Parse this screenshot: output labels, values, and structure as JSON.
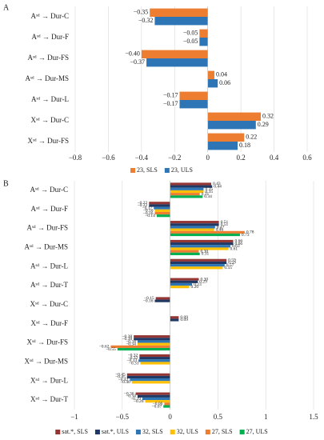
{
  "chart_data": [
    {
      "type": "hbar",
      "panel_label": "A",
      "categories": [
        "Aˢᵈ → Dur-C",
        "Aˢᵈ → Dur-F",
        "Aˢᵈ → Dur-FS",
        "Aˢᵈ → Dur-MS",
        "Aˢᵈ → Dur-L",
        "Xˢᵈ → Dur-C",
        "Xˢᵈ → Dur-FS"
      ],
      "series": [
        {
          "name": "23, SLS",
          "color": "#ed7d31",
          "values": [
            -0.35,
            -0.05,
            -0.4,
            0.04,
            -0.17,
            0.32,
            0.22
          ],
          "value_labels": [
            "−0.35",
            "−0.05",
            "−0.40",
            "0.04",
            "−0.17",
            "0.32",
            "0.22"
          ]
        },
        {
          "name": "23, ULS",
          "color": "#2e75b6",
          "values": [
            -0.32,
            -0.05,
            -0.37,
            0.06,
            -0.17,
            0.29,
            0.18
          ],
          "value_labels": [
            "−0.32",
            "−0.05",
            "−0.37",
            "0.06",
            "−0.17",
            "0.29",
            "0.18"
          ]
        }
      ],
      "xlim": [
        -0.8,
        0.6
      ],
      "xticks": [
        {
          "value": -0.8,
          "label": "−0.8"
        },
        {
          "value": -0.6,
          "label": "−0.6"
        },
        {
          "value": -0.4,
          "label": "−0.4"
        },
        {
          "value": -0.2,
          "label": "−0.2"
        },
        0,
        0.2,
        0.4,
        0.6
      ],
      "grid": true,
      "legend": "bottom"
    },
    {
      "type": "hbar",
      "panel_label": "B",
      "categories": [
        "Aˢᵈ → Dur-C",
        "Aˢᵈ → Dur-F",
        "Aˢᵈ → Dur-FS",
        "Aˢᵈ → Dur-MS",
        "Aˢᵈ → Dur-L",
        "Aˢᵈ → Dur-T",
        "Xˢᵈ → Dur-C",
        "Xˢᵈ → Dur-F",
        "Xˢᵈ → Dur-FS",
        "Xˢᵈ → Dur-MS",
        "Xˢᵈ → Dur-L",
        "Xˢᵈ → Dur-T"
      ],
      "series": [
        {
          "name": "sat.*, SLS",
          "color": "#943634",
          "values": [
            0.43,
            -0.22,
            0.51,
            0.66,
            0.59,
            0.3,
            -0.15,
            0.09,
            -0.38,
            -0.32,
            -0.45,
            -0.36
          ],
          "value_labels": [
            "0.43",
            "−0.22",
            "0.51",
            "0.66",
            "0.59",
            "0.30",
            "−0.15",
            "0.09",
            "−0.38",
            "−0.32",
            "−0.45",
            "−0.36"
          ]
        },
        {
          "name": "sat.*, ULS",
          "color": "#1f3864",
          "values": [
            0.44,
            -0.22,
            0.51,
            0.66,
            0.59,
            0.29,
            -0.16,
            0.09,
            -0.38,
            -0.32,
            -0.45,
            -0.34
          ],
          "value_labels": [
            "0.44",
            "−0.22",
            "0.51",
            "0.66",
            "0.59",
            "0.29",
            "−0.16",
            "0.09",
            "−0.38",
            "−0.32",
            "−0.45",
            "−0.34"
          ]
        },
        {
          "name": "32, SLS",
          "color": "#2e75b6",
          "values": [
            0.35,
            -0.17,
            0.47,
            0.63,
            0.57,
            0.23,
            null,
            null,
            -0.34,
            -0.33,
            -0.42,
            -0.29
          ],
          "value_labels": [
            "0.35",
            "−0.17",
            "0.47",
            "0.63",
            "0.57",
            "0.23",
            null,
            null,
            "−0.34",
            "−0.33",
            "−0.42",
            "−0.29"
          ]
        },
        {
          "name": "32, ULS",
          "color": "#ffc000",
          "values": [
            0.35,
            -0.16,
            0.46,
            0.61,
            0.55,
            0.2,
            null,
            null,
            -0.34,
            -0.31,
            -0.4,
            -0.26
          ],
          "value_labels": [
            "0.35",
            "−0.16",
            "0.46",
            "0.61",
            "0.55",
            "0.20",
            null,
            null,
            "−0.34",
            "−0.31",
            "−0.40",
            "−0.26"
          ]
        },
        {
          "name": "27, SLS",
          "color": "#ed7d31",
          "values": [
            0.31,
            -0.16,
            0.78,
            0.3,
            null,
            null,
            null,
            null,
            -0.62,
            null,
            null,
            -0.06
          ],
          "value_labels": [
            "0.31",
            "−0.16",
            "0.78",
            "0.30",
            null,
            null,
            null,
            null,
            "−0.62",
            null,
            null,
            "−0.06"
          ]
        },
        {
          "name": "27, ULS",
          "color": "#00b050",
          "values": [
            0.34,
            -0.14,
            0.73,
            0.31,
            null,
            null,
            null,
            null,
            -0.55,
            null,
            null,
            -0.07
          ],
          "value_labels": [
            "0.34",
            "−0.14",
            "0.73",
            "0.31",
            null,
            null,
            null,
            null,
            "−0.55",
            null,
            null,
            "−0.07"
          ]
        }
      ],
      "xlim": [
        -1,
        1.5
      ],
      "xticks": [
        {
          "value": -1,
          "label": "−1"
        },
        {
          "value": -0.5,
          "label": "−0.5"
        },
        0,
        0.5,
        1,
        1.5
      ],
      "grid": true,
      "legend": "bottom"
    }
  ]
}
